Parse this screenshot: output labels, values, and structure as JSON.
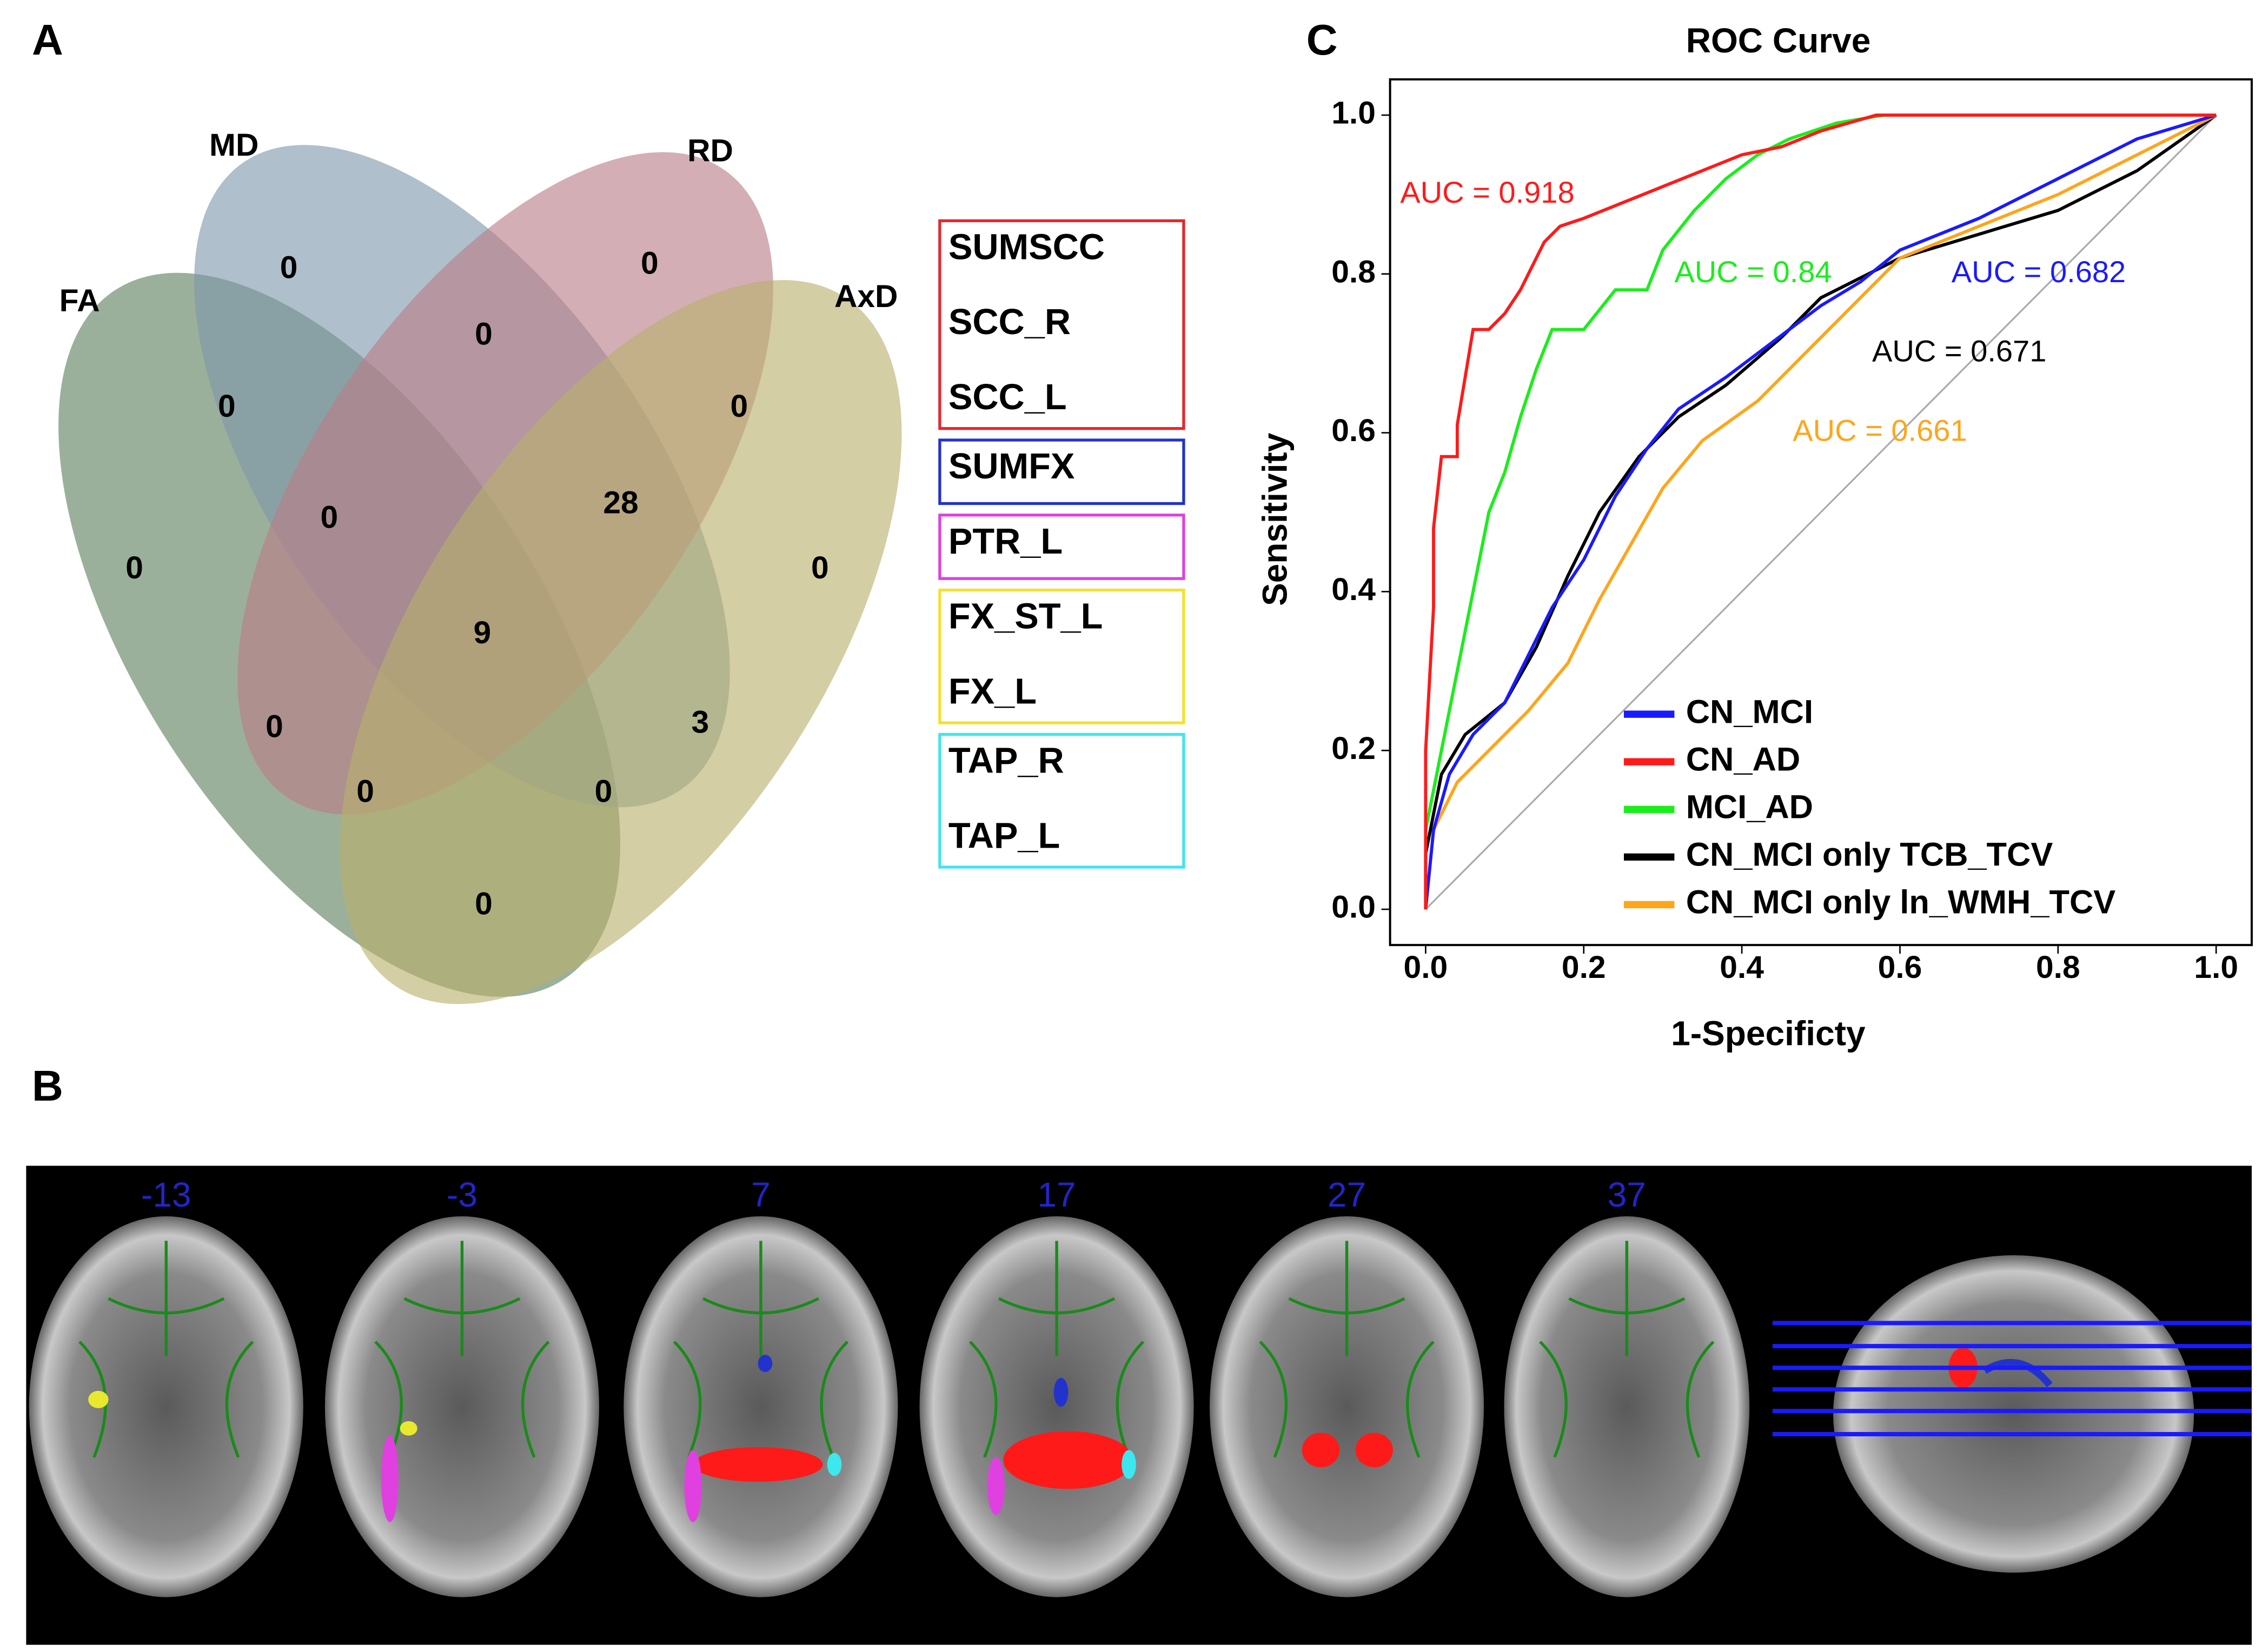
{
  "panel_labels": [
    "A",
    "B",
    "C"
  ],
  "venn": {
    "sets": [
      {
        "label": "FA",
        "color": "#5d7f5c"
      },
      {
        "label": "MD",
        "color": "#7e97ab"
      },
      {
        "label": "RD",
        "color": "#b97c88"
      },
      {
        "label": "AxD",
        "color": "#b8b06c"
      }
    ],
    "regions": [
      0,
      0,
      0,
      0,
      0,
      0,
      28,
      0,
      0,
      9,
      0,
      3,
      0,
      0,
      0
    ]
  },
  "legend_boxes": [
    {
      "color": "#e8262a",
      "items": [
        "SUMSCC",
        "SCC_R",
        "SCC_L"
      ]
    },
    {
      "color": "#2233cc",
      "items": [
        "SUMFX"
      ]
    },
    {
      "color": "#e040e0",
      "items": [
        "PTR_L"
      ]
    },
    {
      "color": "#f2e22e",
      "items": [
        "FX_ST_L",
        "FX_L"
      ]
    },
    {
      "color": "#3ee6ee",
      "items": [
        "TAP_R",
        "TAP_L"
      ]
    }
  ],
  "brain_slices": [
    "-13",
    "-3",
    "7",
    "17",
    "27",
    "37"
  ],
  "chart_data": {
    "type": "line",
    "title": "ROC Curve",
    "x_label": "1-Specificty",
    "y_label": "Sensitivity",
    "xlim": [
      -0.045,
      1.045
    ],
    "ylim": [
      -0.045,
      1.045
    ],
    "xticks": [
      {
        "value": 0,
        "label": "0.0"
      },
      {
        "value": 0.2,
        "label": "0.2"
      },
      {
        "value": 0.4,
        "label": "0.4"
      },
      {
        "value": 0.6,
        "label": "0.6"
      },
      {
        "value": 0.8,
        "label": "0.8"
      },
      {
        "value": 1,
        "label": "1.0"
      }
    ],
    "yticks": [
      {
        "value": 0,
        "label": "0.0"
      },
      {
        "value": 0.2,
        "label": "0.2"
      },
      {
        "value": 0.4,
        "label": "0.4"
      },
      {
        "value": 0.6,
        "label": "0.6"
      },
      {
        "value": 0.8,
        "label": "0.8"
      },
      {
        "value": 1,
        "label": "1.0"
      }
    ],
    "series": [
      {
        "name": "CN_MCI",
        "color": "#1a1aff",
        "x": [
          0,
          0.01,
          0.03,
          0.06,
          0.1,
          0.13,
          0.16,
          0.2,
          0.24,
          0.28,
          0.32,
          0.38,
          0.42,
          0.5,
          0.55,
          0.6,
          0.7,
          0.8,
          0.9,
          1
        ],
        "values": [
          0,
          0.1,
          0.17,
          0.22,
          0.26,
          0.32,
          0.38,
          0.44,
          0.52,
          0.58,
          0.63,
          0.67,
          0.7,
          0.76,
          0.79,
          0.83,
          0.87,
          0.92,
          0.97,
          1
        ]
      },
      {
        "name": "CN_AD",
        "color": "#ff1a1a",
        "x": [
          0,
          0,
          0.01,
          0.01,
          0.02,
          0.04,
          0.04,
          0.05,
          0.06,
          0.08,
          0.1,
          0.12,
          0.14,
          0.15,
          0.17,
          0.2,
          0.25,
          0.3,
          0.35,
          0.4,
          0.45,
          0.5,
          0.57,
          1
        ],
        "values": [
          0,
          0.2,
          0.38,
          0.48,
          0.57,
          0.57,
          0.61,
          0.67,
          0.73,
          0.73,
          0.75,
          0.78,
          0.82,
          0.84,
          0.86,
          0.87,
          0.89,
          0.91,
          0.93,
          0.95,
          0.96,
          0.98,
          1,
          1
        ]
      },
      {
        "name": "MCI_AD",
        "color": "#1aee1a",
        "x": [
          0,
          0,
          0.02,
          0.04,
          0.06,
          0.08,
          0.1,
          0.12,
          0.14,
          0.16,
          0.2,
          0.24,
          0.28,
          0.3,
          0.34,
          0.38,
          0.42,
          0.46,
          0.52,
          0.58,
          1
        ],
        "values": [
          0,
          0.1,
          0.2,
          0.3,
          0.4,
          0.5,
          0.55,
          0.62,
          0.68,
          0.73,
          0.73,
          0.78,
          0.78,
          0.83,
          0.88,
          0.92,
          0.95,
          0.97,
          0.99,
          1,
          1
        ]
      },
      {
        "name": "CN_MCI only TCB_TCV",
        "color": "#000000",
        "x": [
          0,
          0,
          0.02,
          0.05,
          0.1,
          0.14,
          0.18,
          0.22,
          0.27,
          0.32,
          0.38,
          0.45,
          0.5,
          0.6,
          0.7,
          0.8,
          0.9,
          1
        ],
        "values": [
          0,
          0.07,
          0.17,
          0.22,
          0.26,
          0.33,
          0.42,
          0.5,
          0.57,
          0.62,
          0.66,
          0.72,
          0.77,
          0.82,
          0.85,
          0.88,
          0.93,
          1
        ]
      },
      {
        "name": "CN_MCI only ln_WMH_TCV",
        "color": "#ffa51a",
        "x": [
          0,
          0.01,
          0.04,
          0.08,
          0.13,
          0.18,
          0.22,
          0.26,
          0.3,
          0.35,
          0.42,
          0.5,
          0.55,
          0.6,
          0.7,
          0.8,
          0.9,
          1
        ],
        "values": [
          0,
          0.1,
          0.16,
          0.2,
          0.25,
          0.31,
          0.39,
          0.46,
          0.53,
          0.59,
          0.64,
          0.72,
          0.77,
          0.82,
          0.86,
          0.9,
          0.95,
          1
        ]
      }
    ],
    "annotations": [
      {
        "text": "AUC = 0.918",
        "color": "#ff1a1a"
      },
      {
        "text": "AUC = 0.84",
        "color": "#1aee1a"
      },
      {
        "text": "AUC = 0.682",
        "color": "#1a1aff"
      },
      {
        "text": "AUC = 0.671",
        "color": "#000000"
      },
      {
        "text": "AUC = 0.661",
        "color": "#ffa51a"
      }
    ]
  }
}
